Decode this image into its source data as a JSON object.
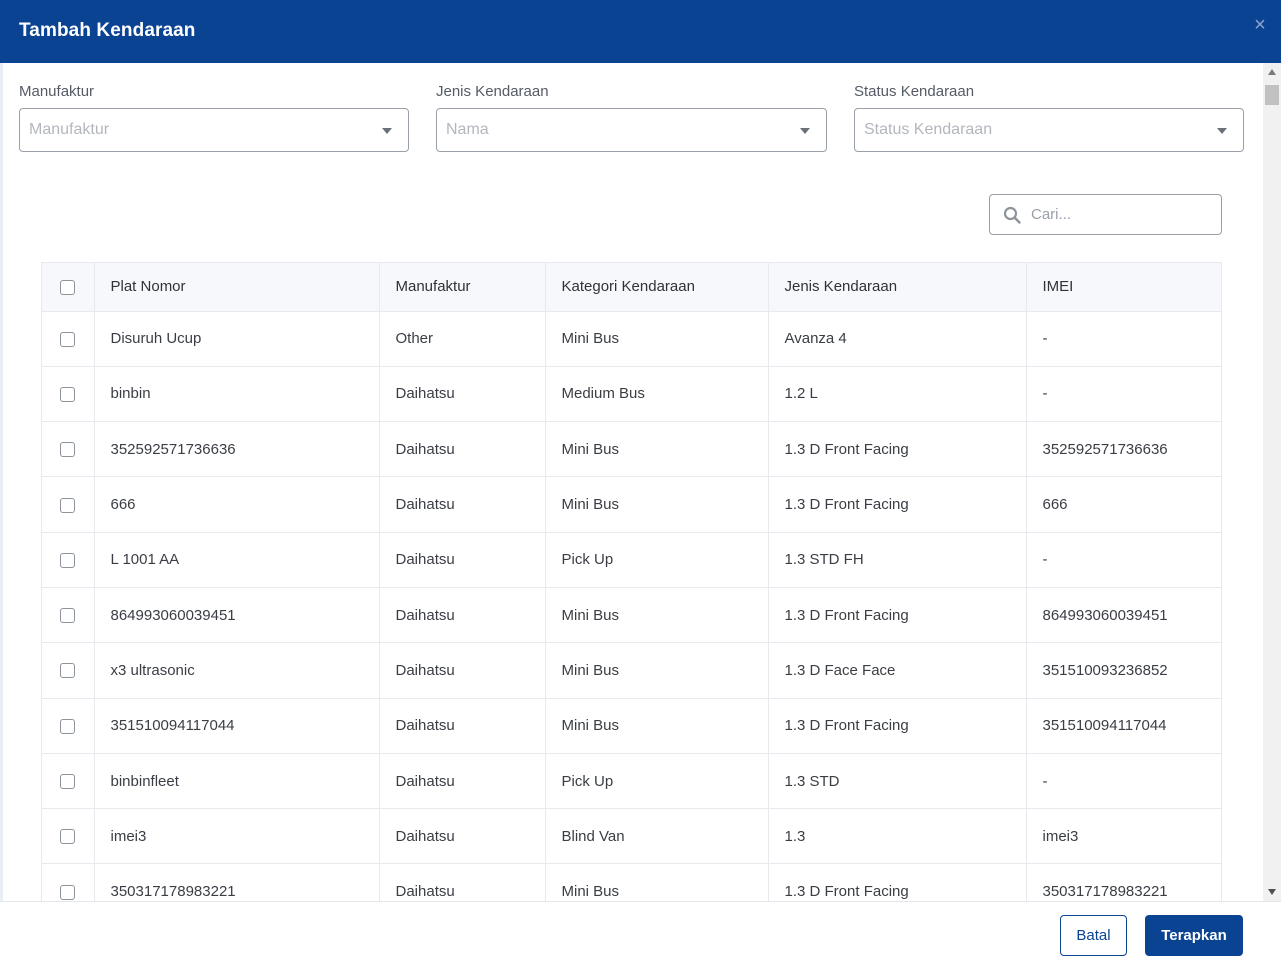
{
  "modal": {
    "title": "Tambah Kendaraan",
    "close_glyph": "×"
  },
  "filters": [
    {
      "label": "Manufaktur",
      "placeholder": "Manufaktur"
    },
    {
      "label": "Jenis Kendaraan",
      "placeholder": "Nama"
    },
    {
      "label": "Status Kendaraan",
      "placeholder": "Status Kendaraan"
    }
  ],
  "search": {
    "placeholder": "Cari..."
  },
  "table": {
    "columns": [
      "Plat Nomor",
      "Manufaktur",
      "Kategori Kendaraan",
      "Jenis Kendaraan",
      "IMEI"
    ],
    "rows": [
      [
        "Disuruh Ucup",
        "Other",
        "Mini Bus",
        "Avanza 4",
        "-"
      ],
      [
        "binbin",
        "Daihatsu",
        "Medium Bus",
        "1.2 L",
        "-"
      ],
      [
        "352592571736636",
        "Daihatsu",
        "Mini Bus",
        "1.3 D Front Facing",
        "352592571736636"
      ],
      [
        "666",
        "Daihatsu",
        "Mini Bus",
        "1.3 D Front Facing",
        "666"
      ],
      [
        "L 1001 AA",
        "Daihatsu",
        "Pick Up",
        "1.3 STD FH",
        "-"
      ],
      [
        "864993060039451",
        "Daihatsu",
        "Mini Bus",
        "1.3 D Front Facing",
        "864993060039451"
      ],
      [
        "x3 ultrasonic",
        "Daihatsu",
        "Mini Bus",
        "1.3 D Face Face",
        "351510093236852"
      ],
      [
        "351510094117044",
        "Daihatsu",
        "Mini Bus",
        "1.3 D Front Facing",
        "351510094117044"
      ],
      [
        "binbinfleet",
        "Daihatsu",
        "Pick Up",
        "1.3 STD",
        "-"
      ],
      [
        "imei3",
        "Daihatsu",
        "Blind Van",
        "1.3",
        "imei3"
      ],
      [
        "350317178983221",
        "Daihatsu",
        "Mini Bus",
        "1.3 D Front Facing",
        "350317178983221"
      ]
    ]
  },
  "footer": {
    "cancel_label": "Batal",
    "apply_label": "Terapkan"
  },
  "colors": {
    "primary": "#0b4393"
  },
  "icons": [
    "close-icon",
    "chevron-down-icon",
    "search-icon",
    "scroll-up-arrow-icon",
    "scroll-down-arrow-icon"
  ]
}
